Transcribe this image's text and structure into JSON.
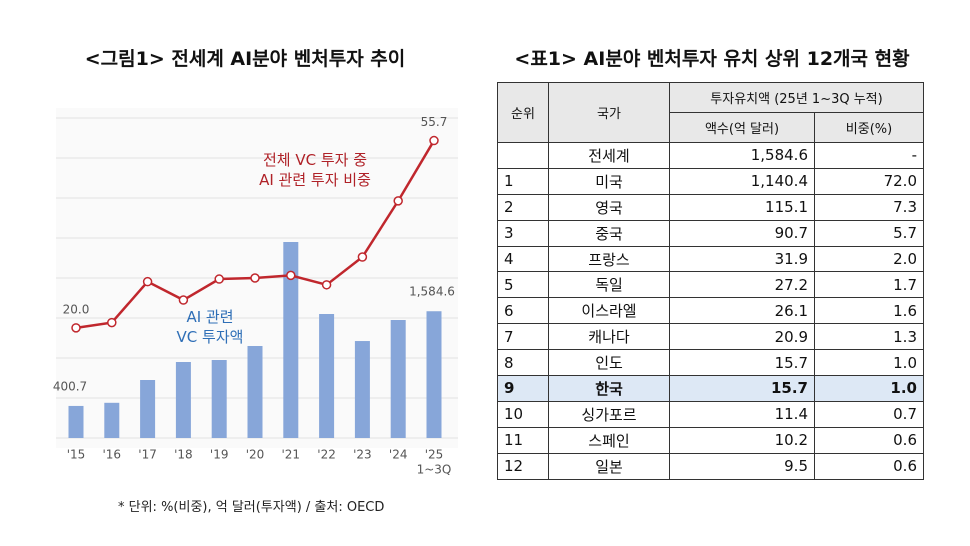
{
  "chart_data": {
    "type": "combo",
    "title": "<그림1> 전세계 AI분야 벤처투자 추이",
    "categories": [
      "'15",
      "'16",
      "'17",
      "'18",
      "'19",
      "'20",
      "'21",
      "'22",
      "'23",
      "'24",
      "'25"
    ],
    "x_note": "1~3Q",
    "ylim": [
      0,
      4000
    ],
    "y2lim": [
      -1,
      60
    ],
    "grid": true,
    "series": [
      {
        "name": "AI 관련\nVC 투자액",
        "type": "bar",
        "color": "#87a6d9",
        "values": [
          400.7,
          440,
          725,
          950,
          975,
          1150,
          2450,
          1550,
          1212,
          1475,
          1584.6
        ],
        "value_labels": [
          "400.7",
          null,
          null,
          null,
          null,
          null,
          null,
          null,
          null,
          null,
          "1,584.6"
        ]
      },
      {
        "name": "전체 VC 투자 중\nAI 관련 투자 비중",
        "type": "line",
        "axis": "y2",
        "color": "#c0272d",
        "values": [
          20.0,
          21.0,
          28.8,
          25.3,
          29.3,
          29.5,
          30.0,
          28.2,
          33.5,
          44.2,
          55.7
        ],
        "value_labels": [
          "20.0",
          null,
          null,
          null,
          null,
          null,
          null,
          null,
          null,
          null,
          "55.7"
        ]
      }
    ]
  },
  "table": {
    "title": "<표1> AI분야 벤처투자 유치 상위 12개국 현황",
    "header": [
      "순위",
      "국가",
      "투자유치액 (25년 1~3Q 누적)",
      "액수(억 달러)",
      "비중(%)"
    ],
    "highlight_row": 9,
    "rows": [
      [
        "",
        "전세계",
        "1,584.6",
        "-"
      ],
      [
        "1",
        "미국",
        "1,140.4",
        "72.0"
      ],
      [
        "2",
        "영국",
        "115.1",
        "7.3"
      ],
      [
        "3",
        "중국",
        "90.7",
        "5.7"
      ],
      [
        "4",
        "프랑스",
        "31.9",
        "2.0"
      ],
      [
        "5",
        "독일",
        "27.2",
        "1.7"
      ],
      [
        "6",
        "이스라엘",
        "26.1",
        "1.6"
      ],
      [
        "7",
        "캐나다",
        "20.9",
        "1.3"
      ],
      [
        "8",
        "인도",
        "15.7",
        "1.0"
      ],
      [
        "9",
        "한국",
        "15.7",
        "1.0"
      ],
      [
        "10",
        "싱가포르",
        "11.4",
        "0.7"
      ],
      [
        "11",
        "스페인",
        "10.2",
        "0.6"
      ],
      [
        "12",
        "일본",
        "9.5",
        "0.6"
      ]
    ]
  },
  "footnote": "* 단위: %(비중), 억 달러(투자액) / 출처: OECD"
}
